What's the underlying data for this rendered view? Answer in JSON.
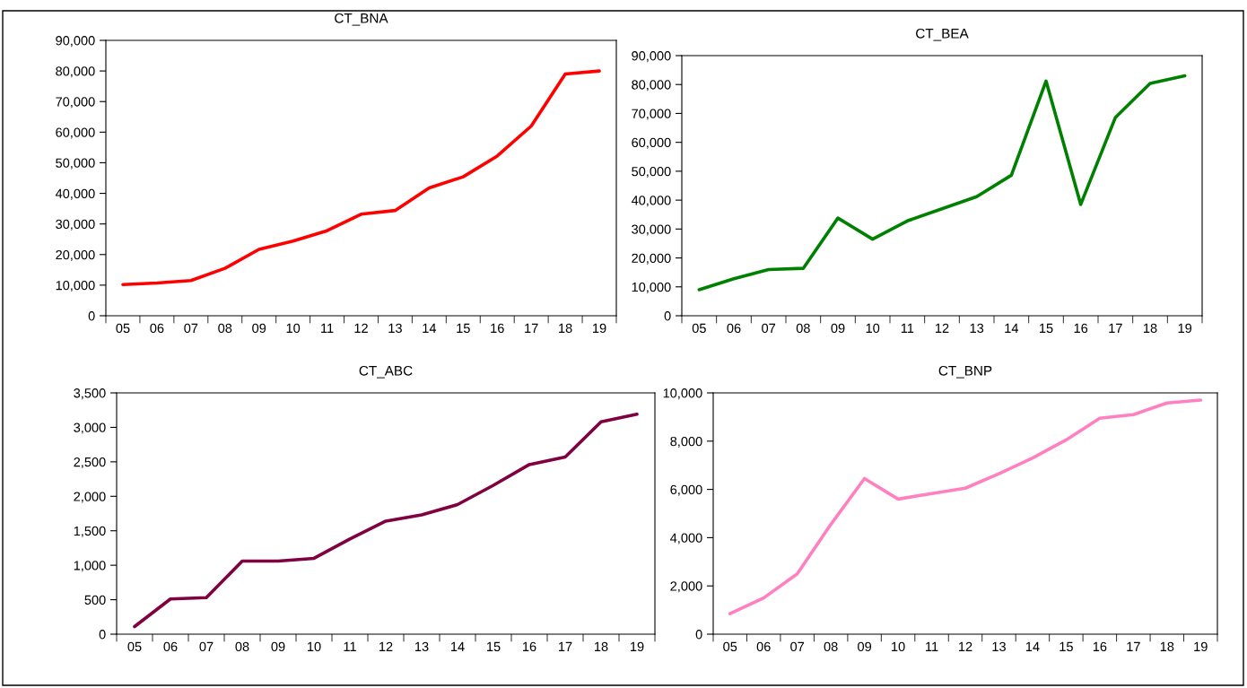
{
  "chart_data": [
    {
      "type": "line",
      "title": "CT_BNA",
      "categories": [
        "05",
        "06",
        "07",
        "08",
        "09",
        "10",
        "11",
        "12",
        "13",
        "14",
        "15",
        "16",
        "17",
        "18",
        "19"
      ],
      "series": [
        {
          "color": "#ff0000",
          "values": [
            10200,
            10700,
            11500,
            15500,
            21700,
            24400,
            27800,
            33200,
            34400,
            41800,
            45400,
            52200,
            62000,
            79000,
            80000
          ]
        }
      ],
      "ylim": [
        0,
        90000
      ],
      "yticks": [
        {
          "value": 0,
          "label": "0"
        },
        {
          "value": 10000,
          "label": "10,000"
        },
        {
          "value": 20000,
          "label": "20,000"
        },
        {
          "value": 30000,
          "label": "30,000"
        },
        {
          "value": 40000,
          "label": "40,000"
        },
        {
          "value": 50000,
          "label": "50,000"
        },
        {
          "value": 60000,
          "label": "60,000"
        },
        {
          "value": 70000,
          "label": "70,000"
        },
        {
          "value": 80000,
          "label": "80,000"
        },
        {
          "value": 90000,
          "label": "90,000"
        }
      ]
    },
    {
      "type": "line",
      "title": "CT_BEA",
      "categories": [
        "05",
        "06",
        "07",
        "08",
        "09",
        "10",
        "11",
        "12",
        "13",
        "14",
        "15",
        "16",
        "17",
        "18",
        "19"
      ],
      "series": [
        {
          "color": "#008000",
          "values": [
            9000,
            12800,
            16000,
            16400,
            33800,
            26500,
            32800,
            37000,
            41200,
            48600,
            81200,
            38500,
            68600,
            80400,
            83000
          ]
        }
      ],
      "ylim": [
        0,
        90000
      ],
      "yticks": [
        {
          "value": 0,
          "label": "0"
        },
        {
          "value": 10000,
          "label": "10,000"
        },
        {
          "value": 20000,
          "label": "20,000"
        },
        {
          "value": 30000,
          "label": "30,000"
        },
        {
          "value": 40000,
          "label": "40,000"
        },
        {
          "value": 50000,
          "label": "50,000"
        },
        {
          "value": 60000,
          "label": "60,000"
        },
        {
          "value": 70000,
          "label": "70,000"
        },
        {
          "value": 80000,
          "label": "80,000"
        },
        {
          "value": 90000,
          "label": "90,000"
        }
      ]
    },
    {
      "type": "line",
      "title": "CT_ABC",
      "categories": [
        "05",
        "06",
        "07",
        "08",
        "09",
        "10",
        "11",
        "12",
        "13",
        "14",
        "15",
        "16",
        "17",
        "18",
        "19"
      ],
      "series": [
        {
          "color": "#800040",
          "values": [
            110,
            510,
            530,
            1060,
            1060,
            1100,
            1380,
            1640,
            1730,
            1880,
            2160,
            2460,
            2570,
            3080,
            3190
          ]
        }
      ],
      "ylim": [
        0,
        3500
      ],
      "yticks": [
        {
          "value": 0,
          "label": "0"
        },
        {
          "value": 500,
          "label": "500"
        },
        {
          "value": 1000,
          "label": "1,000"
        },
        {
          "value": 1500,
          "label": "1,500"
        },
        {
          "value": 2000,
          "label": "2,000"
        },
        {
          "value": 2500,
          "label": "2,500"
        },
        {
          "value": 3000,
          "label": "3,000"
        },
        {
          "value": 3500,
          "label": "3,500"
        }
      ]
    },
    {
      "type": "line",
      "title": "CT_BNP",
      "categories": [
        "05",
        "06",
        "07",
        "08",
        "09",
        "10",
        "11",
        "12",
        "13",
        "14",
        "15",
        "16",
        "17",
        "18",
        "19"
      ],
      "series": [
        {
          "color": "#ff80c0",
          "values": [
            850,
            1500,
            2500,
            4550,
            6450,
            5600,
            5830,
            6050,
            6650,
            7300,
            8050,
            8950,
            9100,
            9580,
            9700
          ]
        }
      ],
      "ylim": [
        0,
        10000
      ],
      "yticks": [
        {
          "value": 0,
          "label": "0"
        },
        {
          "value": 2000,
          "label": "2,000"
        },
        {
          "value": 4000,
          "label": "4,000"
        },
        {
          "value": 6000,
          "label": "6,000"
        },
        {
          "value": 8000,
          "label": "8,000"
        },
        {
          "value": 10000,
          "label": "10,000"
        }
      ]
    }
  ]
}
